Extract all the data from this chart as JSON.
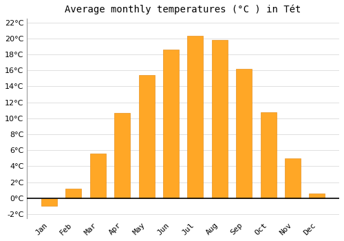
{
  "title": "Average monthly temperatures (°C ) in Tét",
  "months": [
    "Jan",
    "Feb",
    "Mar",
    "Apr",
    "May",
    "Jun",
    "Jul",
    "Aug",
    "Sep",
    "Oct",
    "Nov",
    "Dec"
  ],
  "values": [
    -1.0,
    1.2,
    5.6,
    10.7,
    15.4,
    18.6,
    20.3,
    19.8,
    16.2,
    10.8,
    5.0,
    0.6
  ],
  "bar_color": "#FFA726",
  "bar_edge_color": "#E69020",
  "background_color": "#FFFFFF",
  "plot_bg_color": "#FFFFFF",
  "grid_color": "#E0E0E0",
  "ylim": [
    -2.5,
    22.5
  ],
  "yticks": [
    -2,
    0,
    2,
    4,
    6,
    8,
    10,
    12,
    14,
    16,
    18,
    20,
    22
  ],
  "title_fontsize": 10,
  "tick_fontsize": 8,
  "zero_line_color": "#000000",
  "bar_width": 0.65
}
